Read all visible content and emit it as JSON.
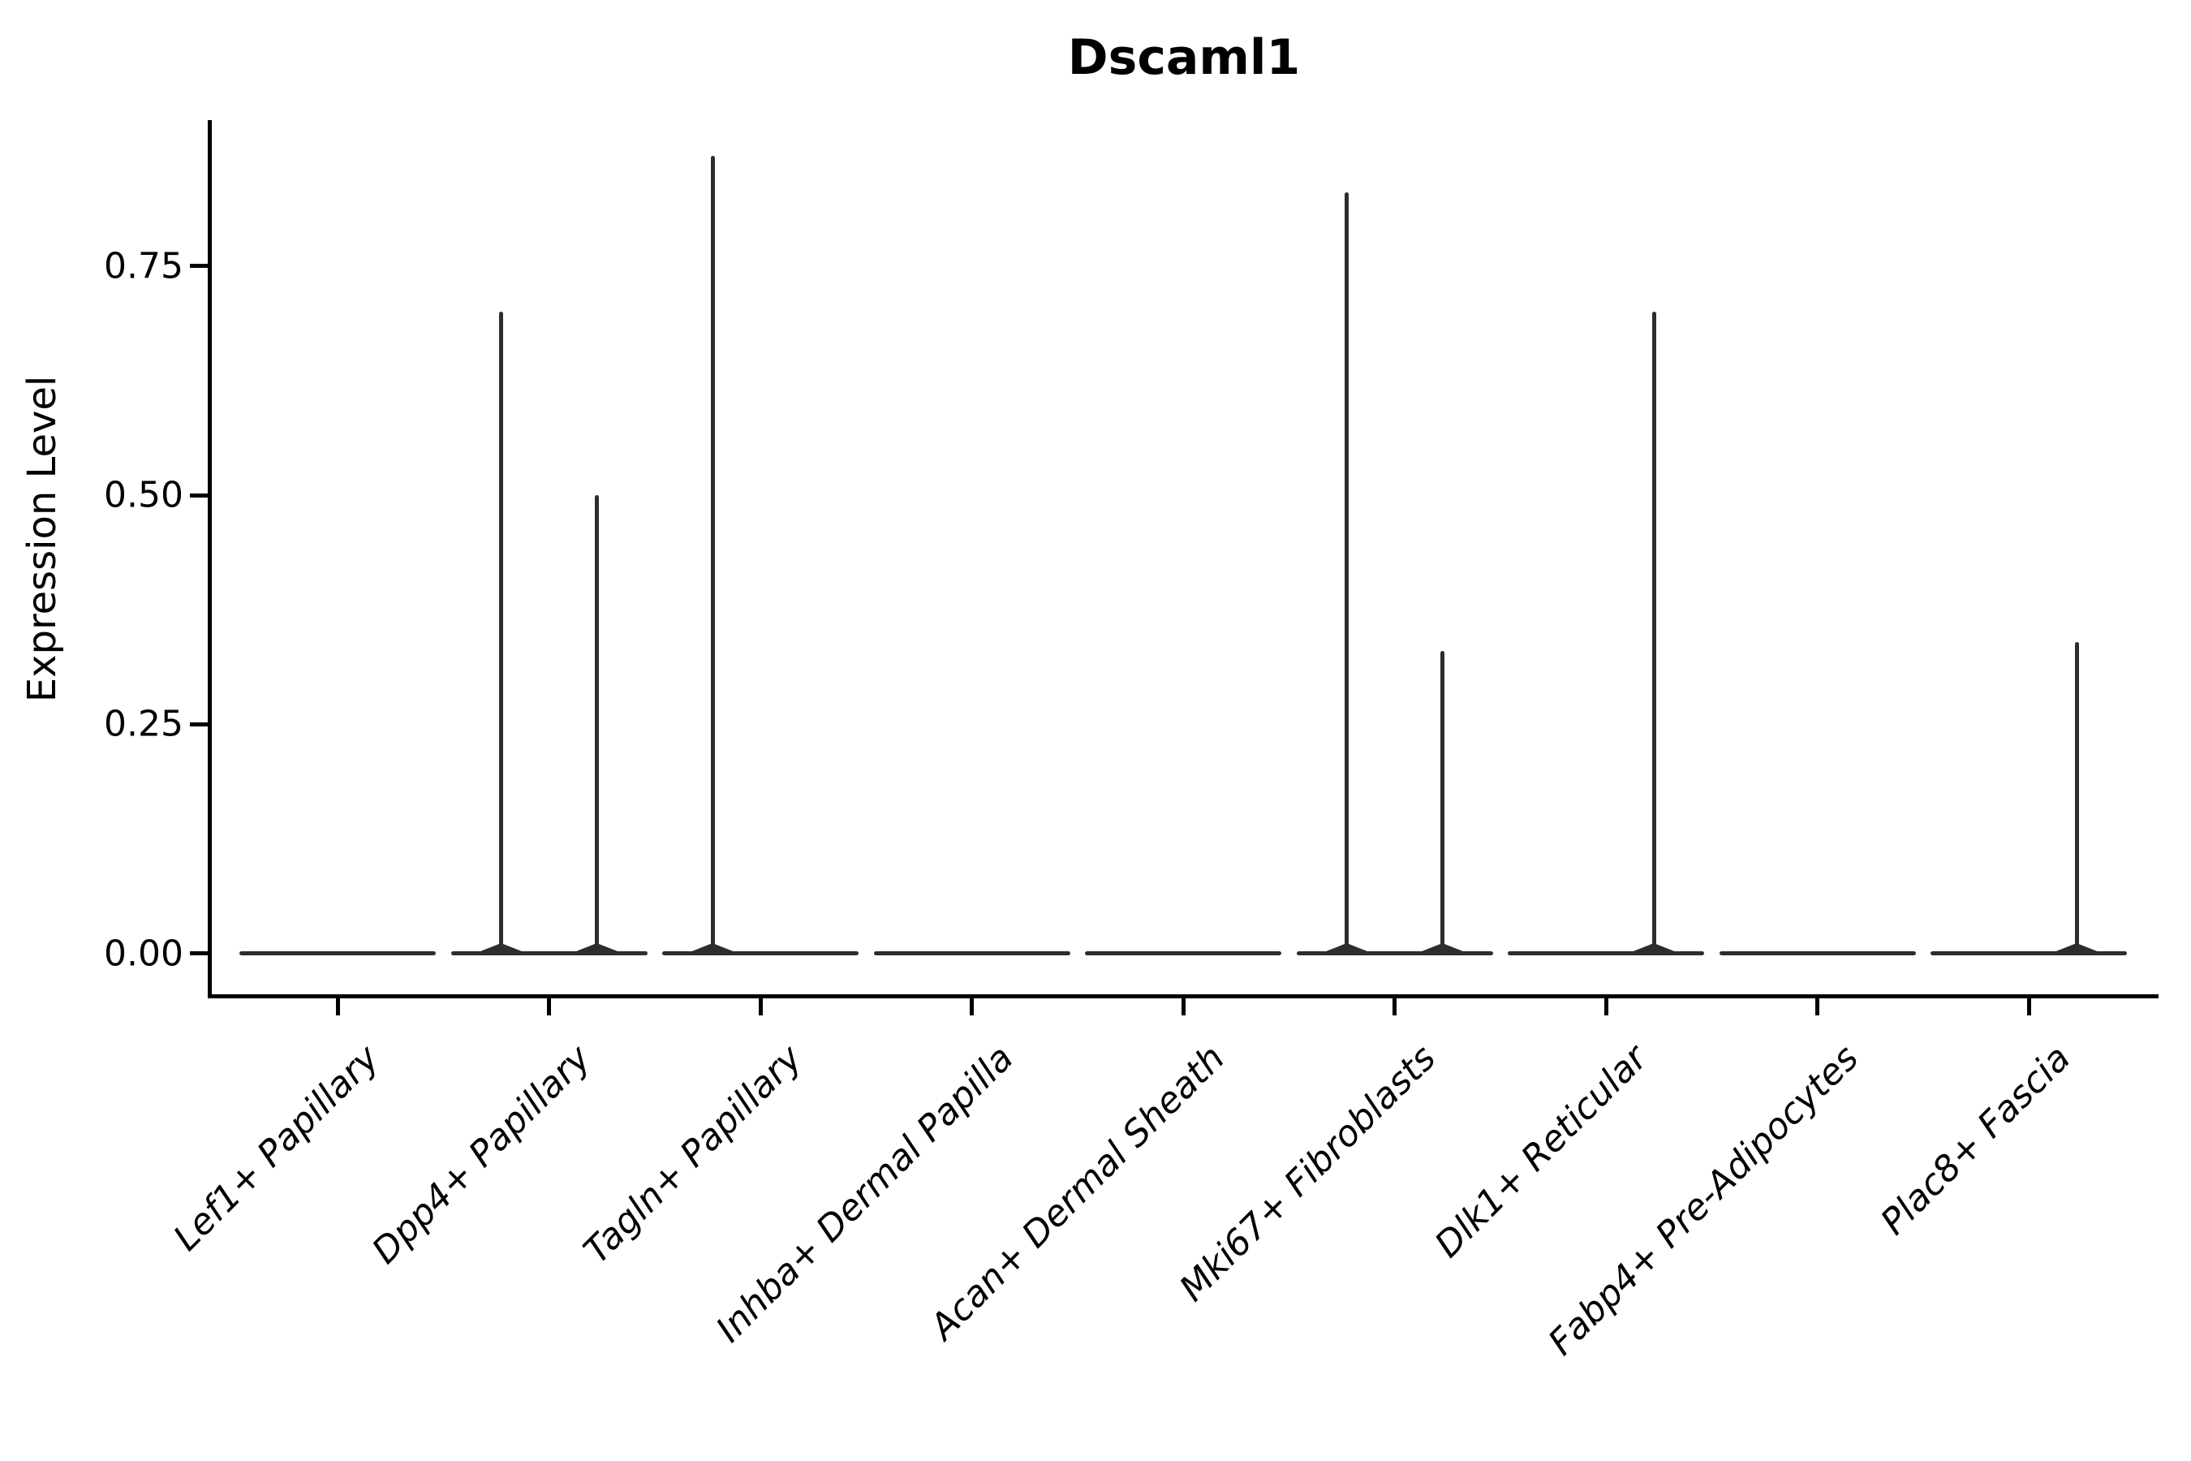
{
  "figure": {
    "background": "#ffffff",
    "violin_line_color": "#2d2d2d",
    "axis_color": "#000000"
  },
  "chart_data": {
    "type": "violin",
    "title": "Dscaml1",
    "xlabel": "",
    "ylabel": "Expression Level",
    "ylim": [
      -0.05,
      0.91
    ],
    "grid": false,
    "legend": "none",
    "groups_per_category": 2,
    "yticks": [
      {
        "value": 0.0,
        "label": "0.00"
      },
      {
        "value": 0.25,
        "label": "0.25"
      },
      {
        "value": 0.5,
        "label": "0.50"
      },
      {
        "value": 0.75,
        "label": "0.75"
      }
    ],
    "categories": [
      "Lef1+ Papillary",
      "Dpp4+ Papillary",
      "Tagln+ Papillary",
      "Inhba+ Dermal Papilla",
      "Acan+ Dermal Sheath",
      "Mki67+ Fibroblasts",
      "Dlk1+ Reticular",
      "Fabp4+ Pre-Adipocytes",
      "Plac8+ Fascia"
    ],
    "series": [
      {
        "category": "Lef1+ Papillary",
        "max_expression_per_group": [
          0,
          0
        ]
      },
      {
        "category": "Dpp4+ Papillary",
        "max_expression_per_group": [
          0.7,
          0.5
        ]
      },
      {
        "category": "Tagln+ Papillary",
        "max_expression_per_group": [
          0.87,
          0
        ]
      },
      {
        "category": "Inhba+ Dermal Papilla",
        "max_expression_per_group": [
          0,
          0
        ]
      },
      {
        "category": "Acan+ Dermal Sheath",
        "max_expression_per_group": [
          0,
          0
        ]
      },
      {
        "category": "Mki67+ Fibroblasts",
        "max_expression_per_group": [
          0.83,
          0.33
        ]
      },
      {
        "category": "Dlk1+ Reticular",
        "max_expression_per_group": [
          0,
          0.7
        ]
      },
      {
        "category": "Fabp4+ Pre-Adipocytes",
        "max_expression_per_group": [
          0,
          0
        ]
      },
      {
        "category": "Plac8+ Fascia",
        "max_expression_per_group": [
          0,
          0.34
        ]
      }
    ]
  }
}
